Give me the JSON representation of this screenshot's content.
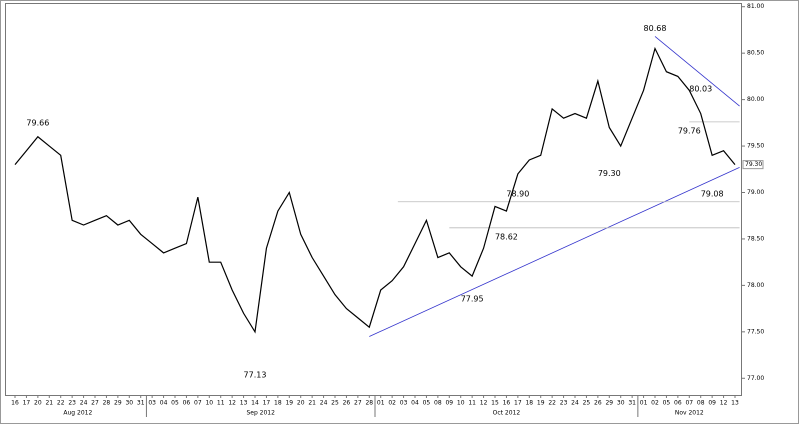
{
  "chart_data": {
    "type": "line",
    "categories": [
      "16",
      "17",
      "20",
      "21",
      "22",
      "23",
      "24",
      "27",
      "28",
      "29",
      "30",
      "31",
      "03",
      "04",
      "05",
      "06",
      "07",
      "10",
      "11",
      "12",
      "13",
      "14",
      "17",
      "18",
      "19",
      "20",
      "21",
      "24",
      "25",
      "26",
      "27",
      "28",
      "01",
      "02",
      "03",
      "04",
      "05",
      "08",
      "09",
      "10",
      "11",
      "12",
      "15",
      "16",
      "17",
      "18",
      "19",
      "22",
      "23",
      "24",
      "25",
      "26",
      "29",
      "30",
      "31",
      "01",
      "02",
      "05",
      "06",
      "07",
      "08",
      "09",
      "12",
      "13"
    ],
    "months": [
      {
        "label": "Aug 2012",
        "first": 0,
        "last": 11
      },
      {
        "label": "Sep 2012",
        "first": 12,
        "last": 31
      },
      {
        "label": "Oct 2012",
        "first": 32,
        "last": 54
      },
      {
        "label": "Nov 2012",
        "first": 55,
        "last": 63
      }
    ],
    "series": [
      {
        "color": "#000000",
        "values": [
          79.3,
          79.45,
          79.6,
          79.5,
          79.4,
          78.7,
          78.65,
          78.7,
          78.75,
          78.65,
          78.7,
          78.55,
          78.45,
          78.35,
          78.4,
          78.45,
          78.95,
          78.25,
          78.25,
          77.95,
          77.7,
          77.5,
          78.4,
          78.8,
          79.0,
          78.55,
          78.3,
          78.1,
          77.9,
          77.75,
          77.65,
          77.55,
          77.95,
          78.05,
          78.2,
          78.45,
          78.7,
          78.3,
          78.35,
          78.2,
          78.1,
          78.4,
          78.85,
          78.8,
          79.2,
          79.35,
          79.4,
          79.9,
          79.8,
          79.85,
          79.8,
          80.2,
          79.7,
          79.5,
          79.8,
          80.1,
          80.55,
          80.3,
          80.25,
          80.1,
          79.85,
          79.4,
          79.45,
          79.3
        ]
      }
    ],
    "annotations": [
      {
        "index": 2,
        "value": 79.66,
        "label": "79.66",
        "side": "above"
      },
      {
        "index": 21,
        "value": 77.13,
        "label": "77.13",
        "side": "below"
      },
      {
        "index": 40,
        "value": 77.95,
        "label": "77.95",
        "side": "below"
      },
      {
        "index": 43,
        "value": 78.62,
        "label": "78.62",
        "side": "below"
      },
      {
        "index": 44,
        "value": 78.9,
        "label": "78.90",
        "side": "above"
      },
      {
        "index": 52,
        "value": 79.3,
        "label": "79.30",
        "side": "below"
      },
      {
        "index": 56,
        "value": 80.68,
        "label": "80.68",
        "side": "above"
      },
      {
        "index": 60,
        "value": 80.03,
        "label": "80.03",
        "side": "above"
      },
      {
        "index": 59,
        "value": 79.76,
        "label": "79.76",
        "side": "below"
      },
      {
        "index": 61,
        "value": 79.08,
        "label": "79.08",
        "side": "below"
      }
    ],
    "trendlines": [
      {
        "color": "#3333cc",
        "x": [
          31,
          63.4
        ],
        "y": [
          77.45,
          79.27
        ]
      },
      {
        "color": "#3333cc",
        "x": [
          56,
          63.4
        ],
        "y": [
          80.68,
          79.93
        ]
      },
      {
        "color": "#bbbbbb",
        "x": [
          33.5,
          63.4
        ],
        "y": [
          78.9,
          78.9
        ]
      },
      {
        "color": "#bbbbbb",
        "x": [
          38,
          63.4
        ],
        "y": [
          78.62,
          78.62
        ]
      },
      {
        "color": "#bbbbbb",
        "x": [
          59,
          63.4
        ],
        "y": [
          79.76,
          79.76
        ]
      }
    ],
    "last_price": {
      "value": 79.3,
      "label": "79.30"
    },
    "ylim": [
      76.82,
      81.04
    ],
    "yticks": [
      {
        "value": 77,
        "label": "77.00"
      },
      {
        "value": 77.5,
        "label": "77.50"
      },
      {
        "value": 78,
        "label": "78.00"
      },
      {
        "value": 78.5,
        "label": "78.50"
      },
      {
        "value": 79,
        "label": "79.00"
      },
      {
        "value": 79.5,
        "label": "79.50"
      },
      {
        "value": 80,
        "label": "80.00"
      },
      {
        "value": 80.5,
        "label": "80.50"
      },
      {
        "value": 81,
        "label": "81.00"
      }
    ]
  }
}
